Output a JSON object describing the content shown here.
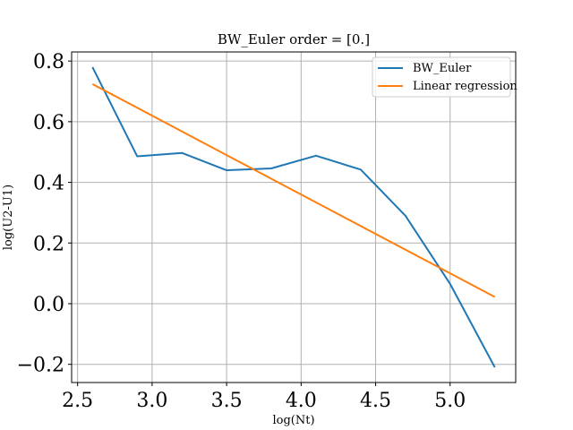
{
  "chart_data": {
    "type": "line",
    "title": "BW_Euler order = [0.]",
    "xlabel": "log(Nt)",
    "ylabel": "log(U2-U1)",
    "xlim": [
      2.46,
      5.44
    ],
    "ylim": [
      -0.26,
      0.83
    ],
    "xticks": [
      2.5,
      3.0,
      3.5,
      4.0,
      4.5,
      5.0
    ],
    "xtick_labels": [
      "2.5",
      "3.0",
      "3.5",
      "4.0",
      "4.5",
      "5.0"
    ],
    "yticks": [
      -0.2,
      0.0,
      0.2,
      0.4,
      0.6,
      0.8
    ],
    "ytick_labels": [
      "−0.2",
      "0.0",
      "0.2",
      "0.4",
      "0.6",
      "0.8"
    ],
    "grid": true,
    "legend_position": "top-right",
    "series": [
      {
        "name": "BW_Euler",
        "color": "#1f77b4",
        "x": [
          2.6,
          2.9,
          3.2,
          3.5,
          3.8,
          4.1,
          4.4,
          4.7,
          5.0,
          5.3
        ],
        "y": [
          0.78,
          0.486,
          0.497,
          0.44,
          0.446,
          0.488,
          0.442,
          0.29,
          0.065,
          -0.21
        ]
      },
      {
        "name": "Linear regression",
        "color": "#ff7f0e",
        "x": [
          2.6,
          5.3
        ],
        "y": [
          0.724,
          0.022
        ]
      }
    ]
  }
}
